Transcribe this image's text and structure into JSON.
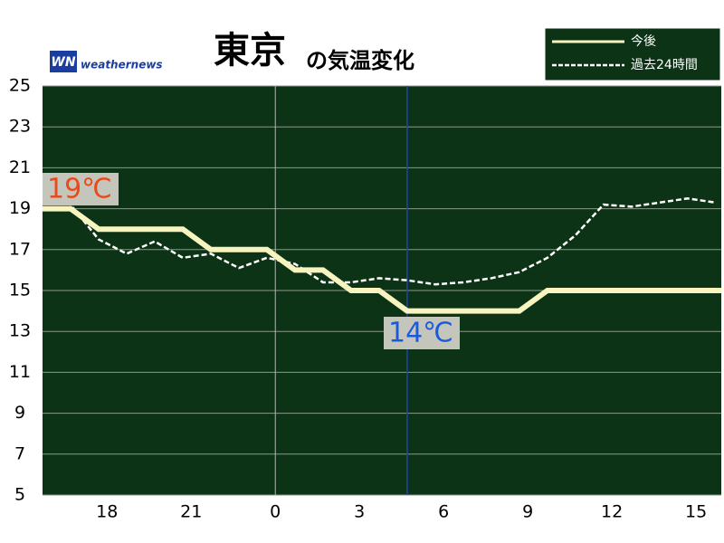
{
  "chart_data": {
    "type": "line",
    "title": "東京",
    "subtitle": "の気温変化",
    "brand": "weathernews",
    "brand_mark": "WN",
    "legend_position": "top-right",
    "background": "#0d3316",
    "xlim": [
      -2.3,
      21.9
    ],
    "ylim": [
      5,
      25
    ],
    "xticks": [
      {
        "value": 0,
        "label": "18"
      },
      {
        "value": 3,
        "label": "21"
      },
      {
        "value": 6,
        "label": "0"
      },
      {
        "value": 9,
        "label": "3"
      },
      {
        "value": 12,
        "label": "6"
      },
      {
        "value": 15,
        "label": "9"
      },
      {
        "value": 18,
        "label": "12"
      },
      {
        "value": 21,
        "label": "15"
      }
    ],
    "yticks": [
      5,
      7,
      9,
      11,
      13,
      15,
      17,
      19,
      21,
      23,
      25
    ],
    "grid": true,
    "date_line": 6,
    "now_line": 10.7,
    "now_color": "#2040c0",
    "series": [
      {
        "name": "今後",
        "color": "#f8f4c0",
        "dashed": false,
        "x": [
          -2.3,
          -1.3,
          -0.3,
          2.7,
          3.7,
          5.7,
          6.7,
          7.7,
          8.7,
          9.7,
          10.7,
          14.7,
          15.7,
          21.9
        ],
        "values": [
          19,
          19,
          18,
          18,
          17,
          17,
          16,
          16,
          15,
          15,
          14,
          14,
          15,
          15
        ]
      },
      {
        "name": "過去24時間",
        "color": "#ffffff",
        "dashed": true,
        "x": [
          -2.3,
          -1.3,
          -0.3,
          0.7,
          1.7,
          2.7,
          3.7,
          4.7,
          5.7,
          6.7,
          7.7,
          8.7,
          9.7,
          10.7,
          11.7,
          12.7,
          13.7,
          14.7,
          15.7,
          16.7,
          17.7,
          18.7,
          19.7,
          20.7,
          21.7
        ],
        "values": [
          19.6,
          19.2,
          17.5,
          16.8,
          17.4,
          16.6,
          16.8,
          16.1,
          16.6,
          16.3,
          15.4,
          15.4,
          15.6,
          15.5,
          15.3,
          15.4,
          15.6,
          15.9,
          16.6,
          17.7,
          19.2,
          19.1,
          19.3,
          19.5,
          19.3
        ]
      }
    ],
    "annotations": [
      {
        "text": "19℃",
        "color": "#e84a1a"
      },
      {
        "text": "14℃",
        "color": "#1a5adc"
      }
    ]
  }
}
